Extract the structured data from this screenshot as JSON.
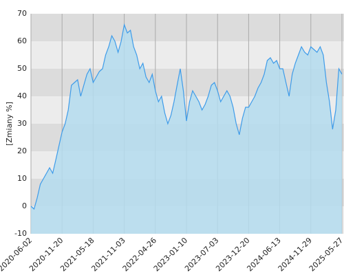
{
  "chart_data": {
    "type": "area",
    "y_label": "[Zmiany %]",
    "categories": [
      "2020-06-02",
      null,
      null,
      null,
      null,
      null,
      null,
      null,
      null,
      null,
      "2020-11-20",
      null,
      null,
      null,
      null,
      null,
      null,
      null,
      null,
      null,
      "2021-05-18",
      null,
      null,
      null,
      null,
      null,
      null,
      null,
      null,
      null,
      "2021-11-03",
      null,
      null,
      null,
      null,
      null,
      null,
      null,
      null,
      null,
      "2022-04-26",
      null,
      null,
      null,
      null,
      null,
      null,
      null,
      null,
      null,
      "2023-01-10",
      null,
      null,
      null,
      null,
      null,
      null,
      null,
      null,
      null,
      "2023-07-03",
      null,
      null,
      null,
      null,
      null,
      null,
      null,
      null,
      null,
      "2023-12-20",
      null,
      null,
      null,
      null,
      null,
      null,
      null,
      null,
      null,
      "2024-06-13",
      null,
      null,
      null,
      null,
      null,
      null,
      null,
      null,
      null,
      "2024-11-29",
      null,
      null,
      null,
      null,
      null,
      null,
      null,
      null,
      null,
      "2025-05-27"
    ],
    "values": [
      0,
      -1,
      3,
      8,
      10,
      12,
      14,
      12,
      17,
      22,
      27,
      30,
      35,
      44,
      45,
      46,
      40,
      44,
      48,
      50,
      45,
      47,
      49,
      50,
      55,
      58,
      62,
      60,
      56,
      60,
      66,
      63,
      64,
      58,
      55,
      50,
      52,
      47,
      45,
      48,
      42,
      38,
      40,
      34,
      30,
      33,
      38,
      44,
      50,
      42,
      31,
      38,
      42,
      40,
      38,
      35,
      37,
      40,
      44,
      45,
      42,
      38,
      40,
      42,
      40,
      36,
      30,
      26,
      32,
      36,
      36,
      38,
      40,
      43,
      45,
      48,
      53,
      54,
      52,
      53,
      50,
      50,
      45,
      40,
      48,
      52,
      55,
      58,
      56,
      55,
      58,
      57,
      56,
      58,
      55,
      45,
      38,
      28,
      35,
      50,
      48
    ],
    "color": "#3d9be9",
    "fill_color": "#b4dcee",
    "ylim": [
      -10,
      70
    ],
    "yticks": [
      -10,
      0,
      10,
      20,
      30,
      40,
      50,
      60,
      70
    ],
    "grid": true
  }
}
